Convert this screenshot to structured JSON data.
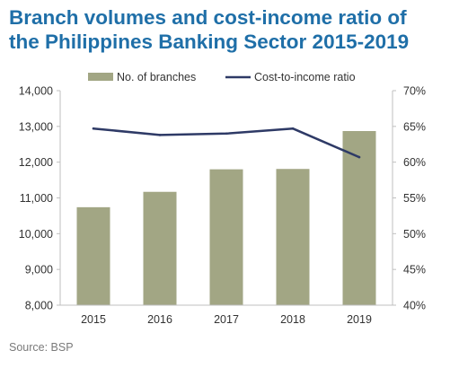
{
  "title_lines": [
    "Branch volumes and cost-income ratio of",
    "the Philippines Banking Sector 2015-2019"
  ],
  "source": "Source: BSP",
  "colors": {
    "title": "#1f6fa8",
    "bar": "#a2a684",
    "line": "#2e3a66",
    "axis": "#bfbfbf"
  },
  "chart_data": {
    "type": "bar",
    "title": "Branch volumes and cost-income ratio of the Philippines Banking Sector 2015-2019",
    "legend_position": "top",
    "grid": false,
    "categories": [
      "2015",
      "2016",
      "2017",
      "2018",
      "2019"
    ],
    "series": [
      {
        "name": "No. of branches",
        "type": "bar",
        "axis": "left",
        "values": [
          10740,
          11170,
          11800,
          11810,
          12870
        ]
      },
      {
        "name": "Cost-to-income ratio",
        "type": "line",
        "axis": "right",
        "values": [
          64.7,
          63.8,
          64.0,
          64.7,
          60.7
        ]
      }
    ],
    "y_left": {
      "min": 8000,
      "max": 14000,
      "ticks": [
        "8,000",
        "9,000",
        "10,000",
        "11,000",
        "12,000",
        "13,000",
        "14,000"
      ]
    },
    "y_right": {
      "min": 40,
      "max": 70,
      "ticks": [
        "40%",
        "45%",
        "50%",
        "55%",
        "60%",
        "65%",
        "70%"
      ]
    }
  }
}
